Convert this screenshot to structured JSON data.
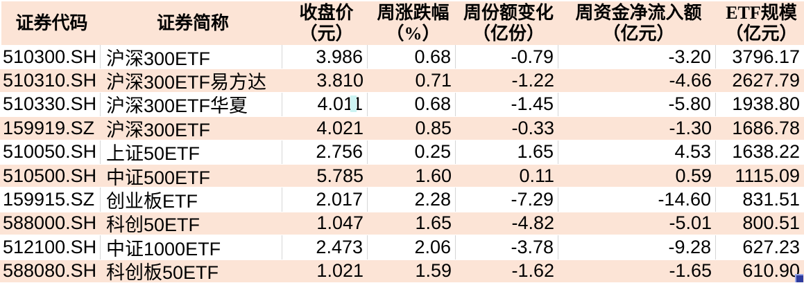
{
  "table": {
    "columns": [
      {
        "label": "证券代码",
        "unit": ""
      },
      {
        "label": "证券简称",
        "unit": ""
      },
      {
        "label": "收盘价",
        "unit": "（元）"
      },
      {
        "label": "周涨跌幅",
        "unit": "（%）"
      },
      {
        "label": "周份额变化",
        "unit": "（亿份）"
      },
      {
        "label": "周资金净流入额",
        "unit": "（亿元）"
      },
      {
        "label": "ETF规模",
        "unit": "（亿元）"
      }
    ],
    "rows": [
      [
        "510300.SH",
        "沪深300ETF",
        "3.986",
        "0.68",
        "-0.79",
        "-3.20",
        "3796.17"
      ],
      [
        "510310.SH",
        "沪深300ETF易方达",
        "3.810",
        "0.71",
        "-1.22",
        "-4.66",
        "2627.79"
      ],
      [
        "510330.SH",
        "沪深300ETF华夏",
        "4.011",
        "0.68",
        "-1.45",
        "-5.80",
        "1938.80"
      ],
      [
        "159919.SZ",
        "沪深300ETF",
        "4.021",
        "0.85",
        "-0.33",
        "-1.30",
        "1686.78"
      ],
      [
        "510050.SH",
        "上证50ETF",
        "2.756",
        "0.25",
        "1.65",
        "4.53",
        "1638.22"
      ],
      [
        "510500.SH",
        "中证500ETF",
        "5.785",
        "1.60",
        "0.11",
        "0.59",
        "1115.09"
      ],
      [
        "159915.SZ",
        "创业板ETF",
        "2.017",
        "2.28",
        "-7.29",
        "-14.60",
        "831.51"
      ],
      [
        "588000.SH",
        "科创50ETF",
        "1.047",
        "1.65",
        "-4.82",
        "-5.01",
        "800.51"
      ],
      [
        "512100.SH",
        "中证1000ETF",
        "2.473",
        "2.06",
        "-3.78",
        "-9.28",
        "627.23"
      ],
      [
        "588080.SH",
        "科创板50ETF",
        "1.021",
        "1.59",
        "-1.62",
        "-1.65",
        "610.90"
      ]
    ]
  },
  "colors": {
    "header_bg": "#fce4d6",
    "stripe_bg": "#fce4d6",
    "row_bg": "#ffffff",
    "gridline": "#d6d6d6",
    "text": "#000000",
    "fill_handle": "#2e3b9e",
    "artifact_cyan": "#ccf3f2"
  }
}
